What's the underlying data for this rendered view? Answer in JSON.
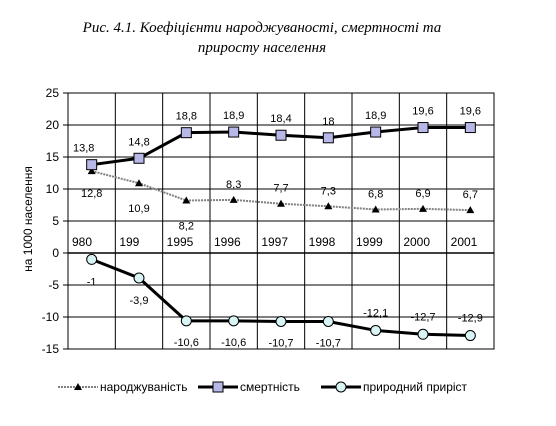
{
  "chart_data": {
    "type": "line",
    "title_line1": "Рис. 4.1. Коефіцієнти народжуваності, смертності та",
    "title_line2": "приросту населення",
    "ylabel": "на 1000 населення",
    "ylim": [
      -15,
      25
    ],
    "yticks": [
      -15,
      -10,
      -5,
      0,
      5,
      10,
      15,
      20,
      25
    ],
    "categories": [
      "980",
      "199",
      "1995",
      "1996",
      "1997",
      "1998",
      "1999",
      "2000",
      "2001"
    ],
    "grid": true,
    "legend_position": "bottom",
    "series": [
      {
        "name": "народжуваність",
        "values": [
          12.8,
          10.9,
          8.2,
          8.3,
          7.7,
          7.3,
          6.8,
          6.9,
          6.7
        ],
        "labels": [
          "12,8",
          "10,9",
          "8,2",
          "8,3",
          "7,7",
          "7,3",
          "6,8",
          "6,9",
          "6,7"
        ],
        "color": "#808080",
        "marker": "triangle"
      },
      {
        "name": "смертність",
        "values": [
          13.8,
          14.8,
          18.8,
          18.9,
          18.4,
          18,
          18.9,
          19.6,
          19.6
        ],
        "labels": [
          "13,8",
          "14,8",
          "18,8",
          "18,9",
          "18,4",
          "18",
          "18,9",
          "19,6",
          "19,6"
        ],
        "color": "#000000",
        "marker": "square",
        "marker_fill": "#b8b8e8"
      },
      {
        "name": "природний приріст",
        "values": [
          -1,
          -3.9,
          -10.6,
          -10.6,
          -10.7,
          -10.7,
          -12.1,
          -12.7,
          -12.9
        ],
        "labels": [
          "-1",
          "-3,9",
          "-10,6",
          "-10,6",
          "-10,7",
          "-10,7",
          "-12,1",
          "-12,7",
          "-12,9"
        ],
        "color": "#000000",
        "marker": "circle",
        "marker_fill": "#d8f4f4"
      }
    ]
  }
}
